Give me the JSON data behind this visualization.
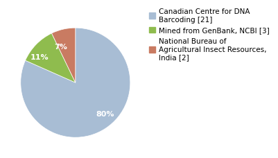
{
  "slices": [
    80,
    11,
    7
  ],
  "labels": [
    "80%",
    "11%",
    "7%"
  ],
  "colors": [
    "#a8bdd4",
    "#8fbc4e",
    "#c97b62"
  ],
  "legend_labels": [
    "Canadian Centre for DNA\nBarcoding [21]",
    "Mined from GenBank, NCBI [3]",
    "National Bureau of\nAgricultural Insect Resources,\nIndia [2]"
  ],
  "startangle": 90,
  "text_color": "white",
  "label_fontsize": 8,
  "legend_fontsize": 7.5,
  "background_color": "#ffffff"
}
